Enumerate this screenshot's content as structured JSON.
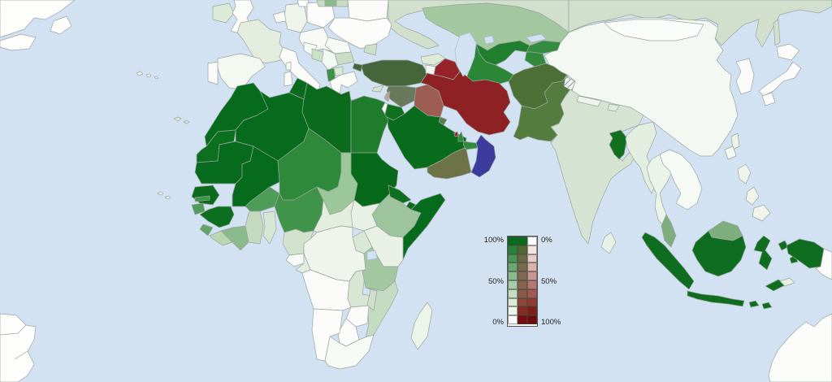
{
  "map": {
    "ocean_color": "#d2e2f2",
    "border_color": "#9aa5a0",
    "lake_stroke": "#a8bdd4",
    "hatch_bg": "#f0f4f0",
    "hatch_line": "#8a97a4",
    "countries": [
      {
        "id": "north-america",
        "fill": "#fdfdfb"
      },
      {
        "id": "newfoundland",
        "fill": "#fdfdfb"
      },
      {
        "id": "nova-scotia",
        "fill": "#fdfdfb"
      },
      {
        "id": "south-america",
        "fill": "#fdfdfb"
      },
      {
        "id": "sa-borders",
        "fill": "none"
      },
      {
        "id": "azores",
        "fill": "#f6f8f4"
      },
      {
        "id": "canary-islands",
        "fill": "#dce8d8"
      },
      {
        "id": "cape-verde",
        "fill": "#f6f8f4"
      },
      {
        "id": "russia-west",
        "fill": "#d2dfcc"
      },
      {
        "id": "russia-east",
        "fill": "#d2dfcc"
      },
      {
        "id": "sakhalin",
        "fill": "#d2dfcc"
      },
      {
        "id": "ireland",
        "fill": "#dcead7"
      },
      {
        "id": "united-kingdom",
        "fill": "#fcfdfb"
      },
      {
        "id": "france",
        "fill": "#e4ecdf"
      },
      {
        "id": "portugal",
        "fill": "#fbfcfa"
      },
      {
        "id": "spain",
        "fill": "#f3f8f1"
      },
      {
        "id": "germany",
        "fill": "#eef4eb"
      },
      {
        "id": "denmark",
        "fill": "#fafcf9"
      },
      {
        "id": "benelux",
        "fill": "#f6f9f4"
      },
      {
        "id": "poland",
        "fill": "#fcfdfb"
      },
      {
        "id": "central-europe",
        "fill": "#f8faf6"
      },
      {
        "id": "baltics",
        "fill": "#c9dcc4"
      },
      {
        "id": "lithuania",
        "fill": "#8cb98c"
      },
      {
        "id": "belarus",
        "fill": "#fbfcfa"
      },
      {
        "id": "ukraine",
        "fill": "#fcfdfb"
      },
      {
        "id": "crimea",
        "fill": "#ccdfc8"
      },
      {
        "id": "romania",
        "fill": "#f6f9f4"
      },
      {
        "id": "bulgaria",
        "fill": "#c9dcc4"
      },
      {
        "id": "serbia",
        "fill": "#f4f8f2"
      },
      {
        "id": "croatia",
        "fill": "#f6faf5"
      },
      {
        "id": "bosnia",
        "fill": "#ccdfc7"
      },
      {
        "id": "albania",
        "fill": "#3b9146"
      },
      {
        "id": "macedonia",
        "fill": "#dce9d7"
      },
      {
        "id": "greece",
        "fill": "#f9fbf8"
      },
      {
        "id": "crete",
        "fill": "#f4f8f2"
      },
      {
        "id": "italy",
        "fill": "#fbfcfa"
      },
      {
        "id": "sicily",
        "fill": "#fbfcfa"
      },
      {
        "id": "sardinia",
        "fill": "#fbfcfa"
      },
      {
        "id": "corsica",
        "fill": "#f6f9f4"
      },
      {
        "id": "china",
        "fill": "#f4f8f2"
      },
      {
        "id": "mongolia",
        "fill": "#fbfdfa"
      },
      {
        "id": "korea",
        "fill": "#fbfcfa"
      },
      {
        "id": "japan-hokkaido",
        "fill": "#fbfcfa"
      },
      {
        "id": "japan-honshu",
        "fill": "#fbfcfa"
      },
      {
        "id": "japan-kyushu",
        "fill": "#fbfcfa"
      },
      {
        "id": "taiwan",
        "fill": "#eef3e7"
      },
      {
        "id": "hainan",
        "fill": "#f4f8f2"
      },
      {
        "id": "kazakhstan",
        "fill": "#a3c79f"
      },
      {
        "id": "uzbekistan",
        "fill": "#1f7f2e"
      },
      {
        "id": "turkmenistan",
        "fill": "#2b8736"
      },
      {
        "id": "kyrgyzstan",
        "fill": "#338c40"
      },
      {
        "id": "tajikistan",
        "fill": "#2f8a3c"
      },
      {
        "id": "afghanistan",
        "fill": "#4c7036"
      },
      {
        "id": "pakistan",
        "fill": "#547c3e"
      },
      {
        "id": "kashmir",
        "fill": "hatch"
      },
      {
        "id": "india",
        "fill": "#d6e2d2"
      },
      {
        "id": "nepal",
        "fill": "#eef4ec"
      },
      {
        "id": "bhutan",
        "fill": "#dfeadb"
      },
      {
        "id": "bangladesh",
        "fill": "#11701e"
      },
      {
        "id": "sri-lanka",
        "fill": "#e9f1e6"
      },
      {
        "id": "myanmar",
        "fill": "#e3ede0"
      },
      {
        "id": "thailand",
        "fill": "#ecf3e9"
      },
      {
        "id": "indochina",
        "fill": "#f6faf5"
      },
      {
        "id": "malaysia-peninsula",
        "fill": "#7fae7e"
      },
      {
        "id": "turkey",
        "fill": "#45663a"
      },
      {
        "id": "turkey-europe",
        "fill": "#45663a"
      },
      {
        "id": "cyprus",
        "fill": "#d4e5cf"
      },
      {
        "id": "syria",
        "fill": "#6a795c"
      },
      {
        "id": "lebanon",
        "fill": "#bba39c"
      },
      {
        "id": "israel",
        "fill": "#f4f8f2"
      },
      {
        "id": "jordan",
        "fill": "#107020"
      },
      {
        "id": "iraq",
        "fill": "#9d5d52"
      },
      {
        "id": "kuwait",
        "fill": "#5e7a50"
      },
      {
        "id": "saudi-arabia",
        "fill": "#086c1c"
      },
      {
        "id": "qatar",
        "fill": "#2d8a3a"
      },
      {
        "id": "bahrain",
        "fill": "#9c2a2a"
      },
      {
        "id": "uae",
        "fill": "#2f8b3c"
      },
      {
        "id": "oman",
        "fill": "#3c3c9c"
      },
      {
        "id": "yemen",
        "fill": "#6e7347"
      },
      {
        "id": "georgia",
        "fill": "#dcead6"
      },
      {
        "id": "armenia",
        "fill": "#f2f7f0"
      },
      {
        "id": "azerbaijan",
        "fill": "#96232a"
      },
      {
        "id": "iran",
        "fill": "#8d2123"
      },
      {
        "id": "morocco",
        "fill": "#076b1d"
      },
      {
        "id": "western-sahara",
        "fill": "#0d701f"
      },
      {
        "id": "algeria",
        "fill": "#076b1d"
      },
      {
        "id": "tunisia",
        "fill": "#0a6b1e"
      },
      {
        "id": "libya",
        "fill": "#0a6b1c"
      },
      {
        "id": "egypt",
        "fill": "#1e7c2c"
      },
      {
        "id": "mauritania",
        "fill": "#076b1d"
      },
      {
        "id": "senegal",
        "fill": "#0a6b1c"
      },
      {
        "id": "gambia",
        "fill": "#3f9449"
      },
      {
        "id": "guinea-bissau",
        "fill": "#4f9c5a"
      },
      {
        "id": "guinea",
        "fill": "#0c6e1f"
      },
      {
        "id": "sierra-leone",
        "fill": "#61a468"
      },
      {
        "id": "liberia",
        "fill": "#b9d6b3"
      },
      {
        "id": "ivory-coast",
        "fill": "#8ab98b"
      },
      {
        "id": "mali",
        "fill": "#076b1d"
      },
      {
        "id": "burkina-faso",
        "fill": "#4f9c58"
      },
      {
        "id": "ghana",
        "fill": "#c4dabf"
      },
      {
        "id": "togo-benin",
        "fill": "#d8e7d3"
      },
      {
        "id": "niger",
        "fill": "#2e8a3a"
      },
      {
        "id": "nigeria",
        "fill": "#3f9449"
      },
      {
        "id": "chad",
        "fill": "#9cc79b"
      },
      {
        "id": "cameroon",
        "fill": "#d2e2cd"
      },
      {
        "id": "central-african-republic",
        "fill": "#e3eedf"
      },
      {
        "id": "sudan",
        "fill": "#076a1b"
      },
      {
        "id": "eritrea",
        "fill": "#0d701f"
      },
      {
        "id": "djibouti",
        "fill": "#0a6b1c"
      },
      {
        "id": "ethiopia",
        "fill": "#9dc49d"
      },
      {
        "id": "somalia",
        "fill": "#076b1d"
      },
      {
        "id": "south-sudan",
        "fill": "#e9f1e6"
      },
      {
        "id": "kenya",
        "fill": "#e9f1e6"
      },
      {
        "id": "uganda",
        "fill": "#d9e8d4"
      },
      {
        "id": "dr-congo",
        "fill": "#eff5ec"
      },
      {
        "id": "gabon",
        "fill": "#f9fbf8"
      },
      {
        "id": "congo",
        "fill": "#e3eedf"
      },
      {
        "id": "angola",
        "fill": "#fbfcfa"
      },
      {
        "id": "zambia",
        "fill": "#d8e6d3"
      },
      {
        "id": "tanzania",
        "fill": "#a3c7a0"
      },
      {
        "id": "malawi",
        "fill": "#cfe0ca"
      },
      {
        "id": "mozambique",
        "fill": "#c6dcc2"
      },
      {
        "id": "zimbabwe",
        "fill": "#fbfcfa"
      },
      {
        "id": "botswana",
        "fill": "#fcfdfb"
      },
      {
        "id": "namibia",
        "fill": "#fcfdfb"
      },
      {
        "id": "south-africa",
        "fill": "#f6faf4"
      },
      {
        "id": "madagascar",
        "fill": "#edf4ea"
      },
      {
        "id": "sumatra",
        "fill": "#0e6d1e"
      },
      {
        "id": "java",
        "fill": "#0e6d1e"
      },
      {
        "id": "lesser-sunda",
        "fill": "#0e6d1e"
      },
      {
        "id": "borneo-malaysia",
        "fill": "#7fae7e"
      },
      {
        "id": "borneo-indonesia",
        "fill": "#0e6d1e"
      },
      {
        "id": "sulawesi",
        "fill": "#0e6d1e"
      },
      {
        "id": "moluccas",
        "fill": "#0e6d1e"
      },
      {
        "id": "timor",
        "fill": "#0e6d1e"
      },
      {
        "id": "east-timor",
        "fill": "#e8f0e5"
      },
      {
        "id": "papua-indonesia",
        "fill": "#0e6d1e"
      },
      {
        "id": "papua-new-guinea",
        "fill": "#fdfdfb"
      },
      {
        "id": "philippines",
        "fill": "#f1f4ea"
      },
      {
        "id": "australia",
        "fill": "#fcfdfb"
      },
      {
        "id": "caspian-sea",
        "fill": "lake"
      },
      {
        "id": "aral-sea",
        "fill": "lake"
      },
      {
        "id": "lake-balkhash",
        "fill": "lake"
      },
      {
        "id": "lake-victoria",
        "fill": "lake"
      }
    ]
  },
  "legend": {
    "left_labels": [
      "100%",
      "50%",
      "0%"
    ],
    "right_labels": [
      "0%",
      "50%",
      "100%"
    ],
    "rows": [
      {
        "left": "#076c1e",
        "mid": "#076c1e",
        "right": "#ffffff"
      },
      {
        "left": "#2a8138",
        "mid": "#51682f",
        "right": "#f3e4e2"
      },
      {
        "left": "#4b9454",
        "mid": "#69683f",
        "right": "#e7cdc9"
      },
      {
        "left": "#6ba770",
        "mid": "#756a4a",
        "right": "#d9b2ac"
      },
      {
        "left": "#8ab98c",
        "mid": "#7f6851",
        "right": "#c79690"
      },
      {
        "left": "#a8cba9",
        "mid": "#876350",
        "right": "#b57971"
      },
      {
        "left": "#c5dcc4",
        "mid": "#8c5848",
        "right": "#a25a51"
      },
      {
        "left": "#dcebdb",
        "mid": "#8c4537",
        "right": "#8e3b33"
      },
      {
        "left": "#eff6ee",
        "mid": "#862c20",
        "right": "#7c1f18"
      },
      {
        "left": "#ffffff",
        "mid": "#7a0b0e",
        "right": "#6f0a0c"
      }
    ]
  }
}
